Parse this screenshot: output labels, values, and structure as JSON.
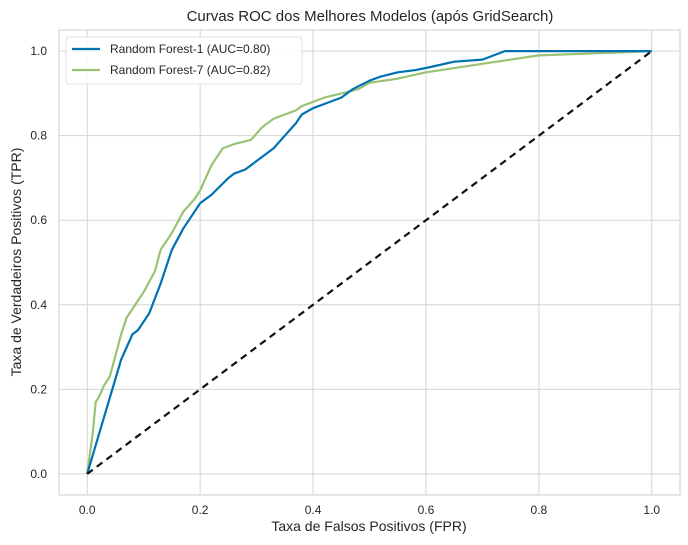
{
  "chart_data": {
    "type": "line",
    "title": "Curvas ROC dos Melhores Modelos (após GridSearch)",
    "xlabel": "Taxa de Falsos Positivos (FPR)",
    "ylabel": "Taxa de Verdadeiros Positivos (TPR)",
    "xlim": [
      -0.05,
      1.05
    ],
    "ylim": [
      -0.05,
      1.05
    ],
    "xticks": [
      0.0,
      0.2,
      0.4,
      0.6,
      0.8,
      1.0
    ],
    "yticks": [
      0.0,
      0.2,
      0.4,
      0.6,
      0.8,
      1.0
    ],
    "xtick_labels": [
      "0.0",
      "0.2",
      "0.4",
      "0.6",
      "0.8",
      "1.0"
    ],
    "ytick_labels": [
      "0.0",
      "0.2",
      "0.4",
      "0.6",
      "0.8",
      "1.0"
    ],
    "grid": true,
    "legend_position": "top-left",
    "series": [
      {
        "name": "Random Forest-1 (AUC=0.80)",
        "color": "#0072b2",
        "x": [
          0.0,
          0.02,
          0.04,
          0.06,
          0.08,
          0.09,
          0.11,
          0.13,
          0.15,
          0.17,
          0.2,
          0.22,
          0.25,
          0.26,
          0.28,
          0.3,
          0.33,
          0.35,
          0.37,
          0.38,
          0.4,
          0.42,
          0.45,
          0.47,
          0.5,
          0.52,
          0.55,
          0.58,
          0.6,
          0.65,
          0.7,
          0.74,
          0.8,
          0.9,
          1.0
        ],
        "y": [
          0.0,
          0.09,
          0.18,
          0.27,
          0.33,
          0.34,
          0.38,
          0.45,
          0.53,
          0.58,
          0.64,
          0.66,
          0.7,
          0.71,
          0.72,
          0.74,
          0.77,
          0.8,
          0.83,
          0.85,
          0.865,
          0.875,
          0.89,
          0.91,
          0.93,
          0.94,
          0.95,
          0.955,
          0.96,
          0.975,
          0.98,
          1.0,
          1.0,
          1.0,
          1.0
        ]
      },
      {
        "name": "Random Forest-7 (AUC=0.82)",
        "color": "#9ac275",
        "x": [
          0.0,
          0.01,
          0.015,
          0.02,
          0.03,
          0.04,
          0.05,
          0.06,
          0.07,
          0.08,
          0.09,
          0.1,
          0.12,
          0.13,
          0.15,
          0.17,
          0.19,
          0.2,
          0.22,
          0.24,
          0.26,
          0.29,
          0.31,
          0.33,
          0.35,
          0.37,
          0.38,
          0.4,
          0.42,
          0.45,
          0.48,
          0.5,
          0.55,
          0.6,
          0.7,
          0.8,
          0.9,
          1.0
        ],
        "y": [
          0.0,
          0.1,
          0.17,
          0.18,
          0.21,
          0.23,
          0.28,
          0.33,
          0.37,
          0.39,
          0.41,
          0.43,
          0.48,
          0.53,
          0.57,
          0.62,
          0.65,
          0.67,
          0.73,
          0.77,
          0.78,
          0.79,
          0.82,
          0.84,
          0.85,
          0.86,
          0.87,
          0.88,
          0.89,
          0.9,
          0.91,
          0.925,
          0.935,
          0.95,
          0.97,
          0.99,
          0.995,
          1.0
        ]
      },
      {
        "name": "",
        "color": "#111111",
        "dashed": true,
        "x": [
          0.0,
          1.0
        ],
        "y": [
          0.0,
          1.0
        ]
      }
    ]
  }
}
